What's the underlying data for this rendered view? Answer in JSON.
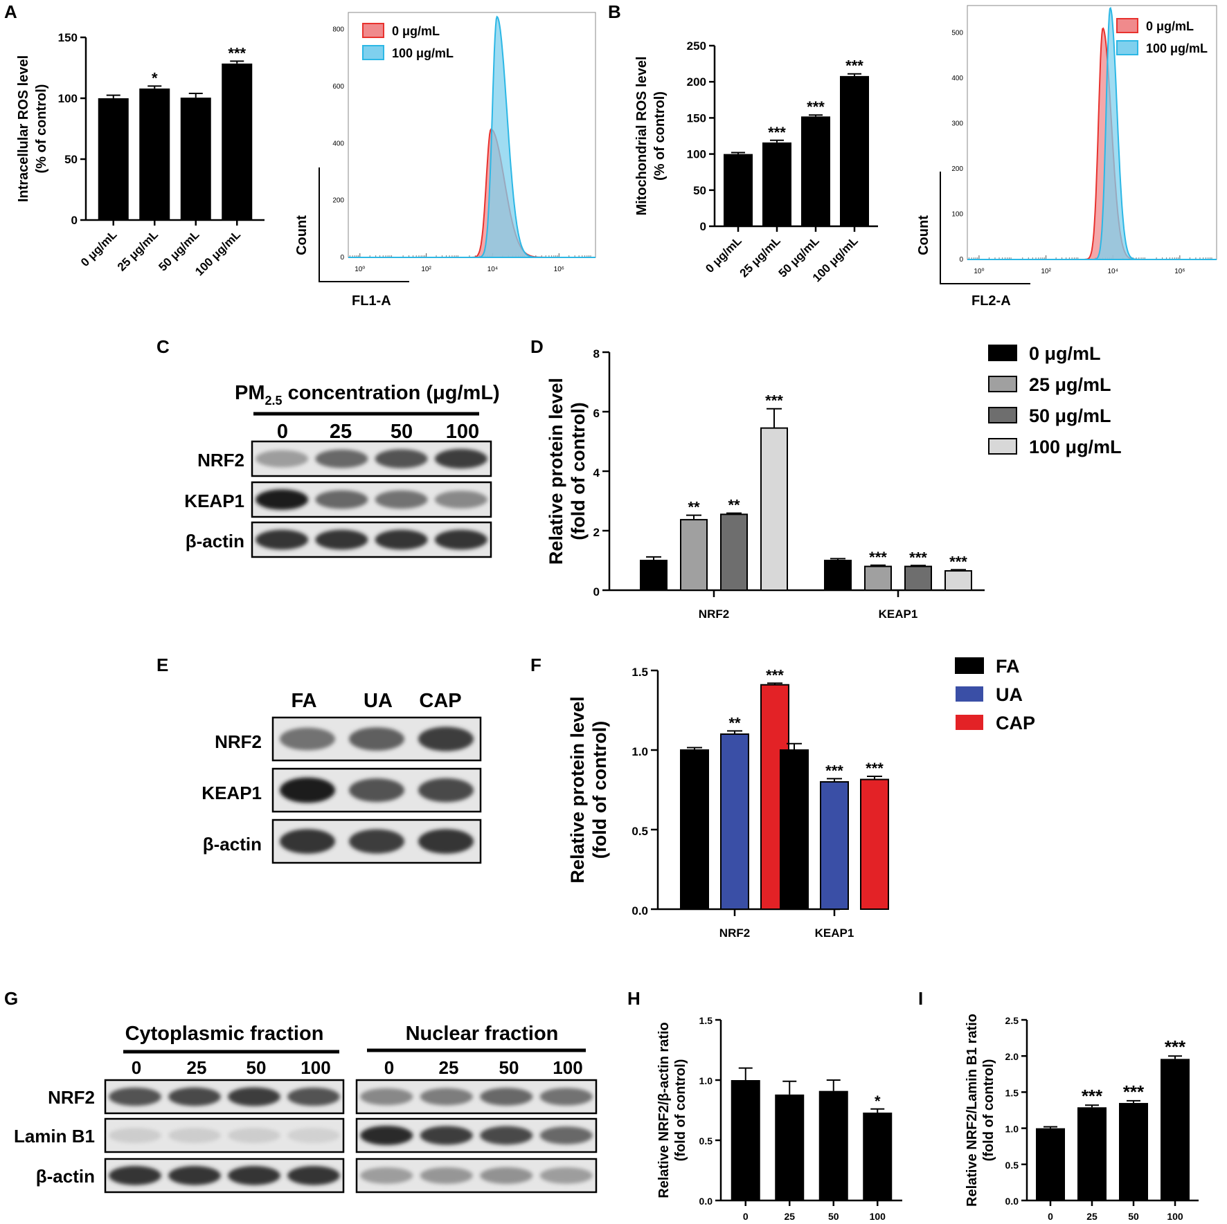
{
  "panel_labels": {
    "A": "A",
    "B": "B",
    "C": "C",
    "D": "D",
    "E": "E",
    "F": "F",
    "G": "G",
    "H": "H",
    "I": "I"
  },
  "chart_data": [
    {
      "id": "A_bar",
      "type": "bar",
      "ylabel_lines": [
        "Intracellular ROS level",
        "(% of control)"
      ],
      "categories": [
        "0 μg/mL",
        "25 μg/mL",
        "50 μg/mL",
        "100 μg/mL"
      ],
      "values": [
        100,
        108,
        100.5,
        128.5
      ],
      "errors": [
        2.5,
        2,
        3.5,
        2
      ],
      "significance": [
        "",
        "*",
        "",
        "***"
      ],
      "ylim": [
        0,
        150
      ],
      "yticks": [
        0,
        50,
        100,
        150
      ],
      "color": "#000000"
    },
    {
      "id": "A_hist",
      "type": "area",
      "xlabel": "FL1-A",
      "ylabel": "Count",
      "xscale": "log",
      "xticks": [
        1,
        100,
        10000,
        1000000
      ],
      "xtick_labels": [
        "10⁰",
        "10²",
        "10⁴",
        "10⁶"
      ],
      "yticks": [
        0,
        200,
        400,
        600,
        800
      ],
      "ylim": [
        0,
        860
      ],
      "series": [
        {
          "name": "0 μg/mL",
          "peak_log10": 3.95,
          "peak_count": 450,
          "color": "#e8322e",
          "fill": "#f08a8c"
        },
        {
          "name": "100 μg/mL",
          "peak_log10": 4.13,
          "peak_count": 845,
          "color": "#2cb7e5",
          "fill": "#7fd0ee"
        }
      ]
    },
    {
      "id": "B_bar",
      "type": "bar",
      "ylabel_lines": [
        "Mitochondrial ROS level",
        "(% of control)"
      ],
      "categories": [
        "0 μg/mL",
        "25 μg/mL",
        "50 μg/mL",
        "100 μg/mL"
      ],
      "values": [
        100,
        116,
        152,
        208
      ],
      "errors": [
        2,
        3,
        2,
        3
      ],
      "significance": [
        "",
        "***",
        "***",
        "***"
      ],
      "ylim": [
        0,
        250
      ],
      "yticks": [
        0,
        50,
        100,
        150,
        200,
        250
      ],
      "color": "#000000"
    },
    {
      "id": "B_hist",
      "type": "area",
      "xlabel": "FL2-A",
      "ylabel": "Count",
      "xscale": "log",
      "xticks": [
        1,
        100,
        10000,
        1000000
      ],
      "xtick_labels": [
        "10⁰",
        "10²",
        "10⁴",
        "10⁶"
      ],
      "yticks": [
        0,
        100,
        200,
        300,
        400,
        500
      ],
      "ylim": [
        0,
        560
      ],
      "series": [
        {
          "name": "0 μg/mL",
          "peak_log10": 3.7,
          "peak_count": 510,
          "color": "#e8322e",
          "fill": "#f08a8c"
        },
        {
          "name": "100 μg/mL",
          "peak_log10": 3.92,
          "peak_count": 555,
          "color": "#2cb7e5",
          "fill": "#7fd0ee"
        }
      ]
    },
    {
      "id": "D_bar",
      "type": "bar",
      "ylabel_lines": [
        "Relative protein level",
        "(fold of control)"
      ],
      "categories": [
        "NRF2",
        "KEAP1"
      ],
      "series": [
        {
          "name": "0 μg/mL",
          "values": [
            1.0,
            1.0
          ],
          "errors": [
            0.12,
            0.06
          ],
          "significance": [
            "",
            ""
          ],
          "color": "#000000"
        },
        {
          "name": "25 μg/mL",
          "values": [
            2.37,
            0.8
          ],
          "errors": [
            0.15,
            0.04
          ],
          "significance": [
            "**",
            "***"
          ],
          "color": "#a0a0a0"
        },
        {
          "name": "50 μg/mL",
          "values": [
            2.55,
            0.8
          ],
          "errors": [
            0.04,
            0.03
          ],
          "significance": [
            "**",
            "***"
          ],
          "color": "#6e6e6e"
        },
        {
          "name": "100 μg/mL",
          "values": [
            5.45,
            0.65
          ],
          "errors": [
            0.65,
            0.04
          ],
          "significance": [
            "***",
            "***"
          ],
          "color": "#d8d8d8"
        }
      ],
      "ylim": [
        0,
        8
      ],
      "yticks": [
        0,
        2,
        4,
        6,
        8
      ]
    },
    {
      "id": "F_bar",
      "type": "bar",
      "ylabel_lines": [
        "Relative protein level",
        "(fold of control)"
      ],
      "categories": [
        "NRF2",
        "KEAP1"
      ],
      "series": [
        {
          "name": "FA",
          "values": [
            1.0,
            1.0
          ],
          "errors": [
            0.015,
            0.04
          ],
          "significance": [
            "",
            ""
          ],
          "color": "#000000"
        },
        {
          "name": "UA",
          "values": [
            1.1,
            0.8
          ],
          "errors": [
            0.02,
            0.02
          ],
          "significance": [
            "**",
            "***"
          ],
          "color": "#3a4fa6"
        },
        {
          "name": "CAP",
          "values": [
            1.41,
            0.815
          ],
          "errors": [
            0.01,
            0.02
          ],
          "significance": [
            "***",
            "***"
          ],
          "color": "#e32226"
        }
      ],
      "ylim": [
        0,
        1.5
      ],
      "yticks": [
        0.0,
        0.5,
        1.0,
        1.5
      ],
      "ytick_labels": [
        "0.0",
        "0.5",
        "1.0",
        "1.5"
      ]
    },
    {
      "id": "H_bar",
      "type": "bar",
      "ylabel_lines": [
        "Relative NRF2/β-actin ratio",
        "(fold of control)"
      ],
      "categories": [
        "0",
        "25",
        "50",
        "100"
      ],
      "values": [
        1.0,
        0.88,
        0.91,
        0.73
      ],
      "errors": [
        0.1,
        0.11,
        0.09,
        0.03
      ],
      "significance": [
        "",
        "",
        "",
        "*"
      ],
      "ylim": [
        0,
        1.5
      ],
      "yticks": [
        0.0,
        0.5,
        1.0,
        1.5
      ],
      "ytick_labels": [
        "0.0",
        "0.5",
        "1.0",
        "1.5"
      ],
      "color": "#000000"
    },
    {
      "id": "I_bar",
      "type": "bar",
      "ylabel_lines": [
        "Relative NRF2/Lamin B1 ratio",
        "(fold of control)"
      ],
      "categories": [
        "0",
        "25",
        "50",
        "100"
      ],
      "values": [
        1.0,
        1.29,
        1.35,
        1.96
      ],
      "errors": [
        0.02,
        0.03,
        0.03,
        0.04
      ],
      "significance": [
        "",
        "***",
        "***",
        "***"
      ],
      "ylim": [
        0,
        2.5
      ],
      "yticks": [
        0.0,
        0.5,
        1.0,
        1.5,
        2.0,
        2.5
      ],
      "ytick_labels": [
        "0.0",
        "0.5",
        "1.0",
        "1.5",
        "2.0",
        "2.5"
      ],
      "color": "#000000"
    }
  ],
  "blots": {
    "C": {
      "header_pre": "PM",
      "header_sub": "2.5",
      "header_post": " concentration (μg/mL)",
      "lanes": [
        "0",
        "25",
        "50",
        "100"
      ],
      "rows": [
        {
          "label": "NRF2",
          "intensity": [
            0.35,
            0.6,
            0.7,
            0.8
          ]
        },
        {
          "label": "KEAP1",
          "intensity": [
            0.95,
            0.6,
            0.55,
            0.45
          ]
        },
        {
          "label": "β-actin",
          "intensity": [
            0.85,
            0.85,
            0.85,
            0.85
          ]
        }
      ]
    },
    "E": {
      "lanes": [
        "FA",
        "UA",
        "CAP"
      ],
      "rows": [
        {
          "label": "NRF2",
          "intensity": [
            0.55,
            0.65,
            0.8
          ]
        },
        {
          "label": "KEAP1",
          "intensity": [
            0.95,
            0.7,
            0.75
          ]
        },
        {
          "label": "β-actin",
          "intensity": [
            0.85,
            0.8,
            0.85
          ]
        }
      ]
    },
    "G": {
      "cyto_title": "Cytoplasmic fraction",
      "nuc_title": "Nuclear fraction",
      "lanes": [
        "0",
        "25",
        "50",
        "100"
      ],
      "rows": [
        {
          "label": "NRF2",
          "cyto": [
            0.7,
            0.75,
            0.8,
            0.7
          ],
          "nuc": [
            0.45,
            0.5,
            0.6,
            0.55
          ]
        },
        {
          "label": "Lamin B1",
          "cyto": [
            0.12,
            0.12,
            0.12,
            0.1
          ],
          "nuc": [
            0.9,
            0.8,
            0.75,
            0.6
          ]
        },
        {
          "label": "β-actin",
          "cyto": [
            0.85,
            0.85,
            0.85,
            0.85
          ],
          "nuc": [
            0.35,
            0.38,
            0.4,
            0.35
          ]
        }
      ]
    }
  }
}
